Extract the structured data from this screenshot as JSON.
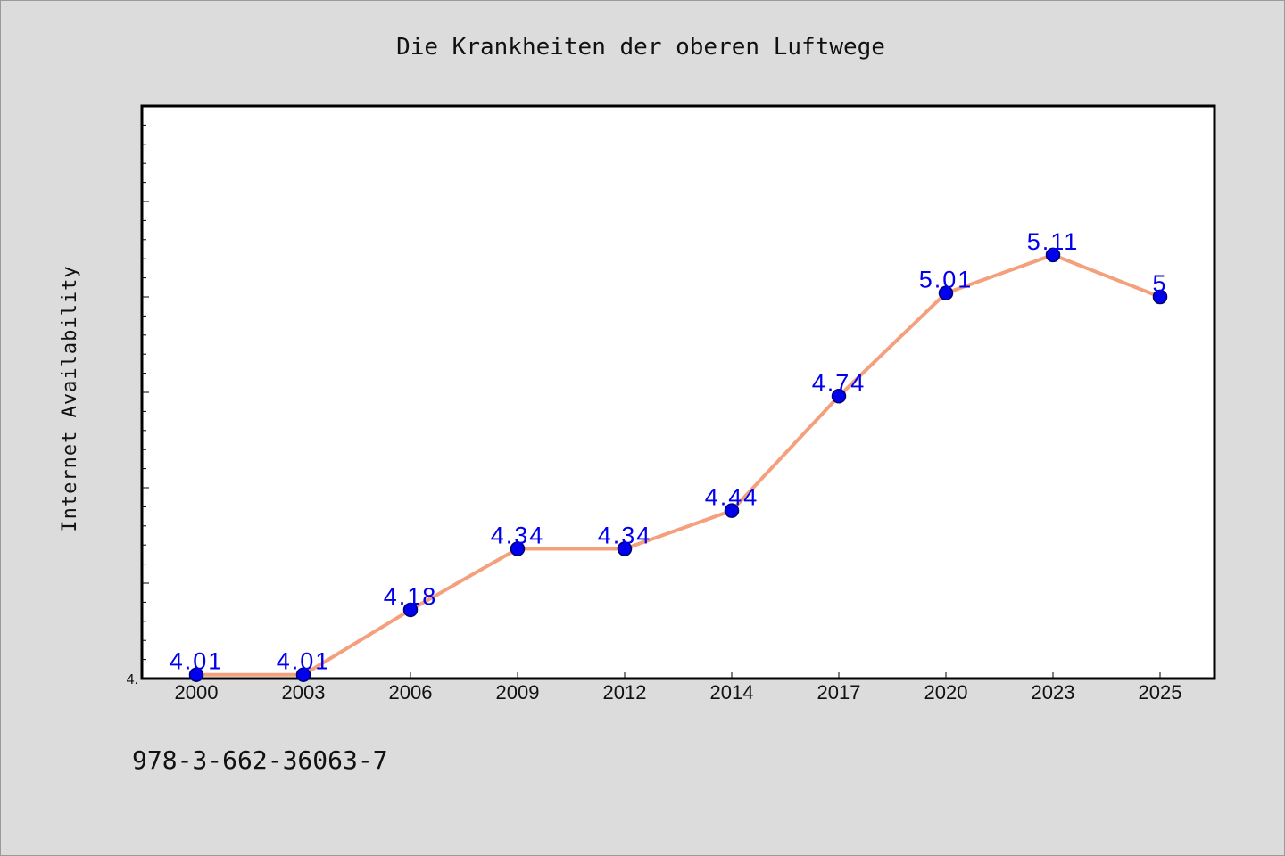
{
  "chart_data": {
    "type": "line",
    "title": "Die Krankheiten der oberen Luftwege",
    "xlabel": "",
    "ylabel": "Internet Availability",
    "categories": [
      "2000",
      "2003",
      "2006",
      "2009",
      "2012",
      "2014",
      "2017",
      "2020",
      "2023",
      "2025"
    ],
    "series": [
      {
        "values": [
          4.01,
          4.01,
          4.18,
          4.34,
          4.34,
          4.44,
          4.74,
          5.01,
          5.11,
          5.0
        ],
        "data_labels": [
          "4.01",
          "4.01",
          "4.18",
          "4.34",
          "4.34",
          "4.44",
          "4.74",
          "5.01",
          "5.11",
          "5"
        ]
      }
    ],
    "ylim": [
      4.0,
      5.5
    ],
    "y_tick_labels": [
      "4."
    ],
    "grid": false,
    "legend": "none",
    "colors": {
      "line": "#f4a07c",
      "marker_fill": "#0000ee",
      "marker_edge": "#00006e",
      "data_label": "#0000ee",
      "plot_bg": "#ffffff",
      "page_bg": "#dcdcdc"
    }
  },
  "footer": {
    "isbn": "978-3-662-36063-7"
  }
}
